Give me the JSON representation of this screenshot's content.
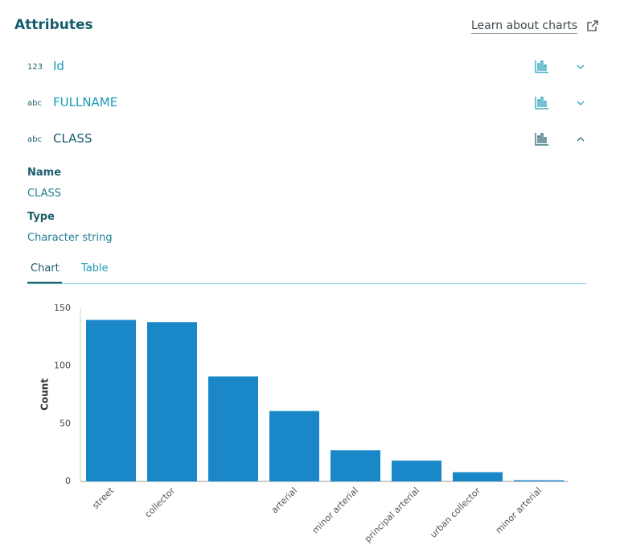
{
  "header": {
    "title": "Attributes",
    "link": "Learn about charts"
  },
  "fields": [
    {
      "type_icon": "123",
      "name": "Id"
    },
    {
      "type_icon": "abc",
      "name": "FULLNAME"
    },
    {
      "type_icon": "abc",
      "name": "CLASS"
    }
  ],
  "details": {
    "name_label": "Name",
    "name_value": "CLASS",
    "type_label": "Type",
    "type_value": "Character string"
  },
  "tabs": [
    "Chart",
    "Table"
  ],
  "chart_data": {
    "type": "bar",
    "y_label": "Count",
    "categories": [
      "street",
      "collector",
      null,
      "arterial",
      "minor arterial",
      "principal arterial",
      "urban collector",
      "minor arterial"
    ],
    "values": [
      140,
      138,
      91,
      61,
      27,
      18,
      8,
      1
    ],
    "color": "#1a87c9",
    "ylim": [
      0,
      150
    ],
    "yticks": [
      0,
      50,
      100,
      150
    ],
    "grid": false
  }
}
